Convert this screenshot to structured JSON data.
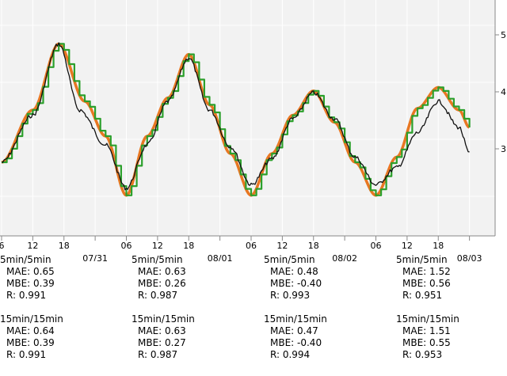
{
  "chart_data": {
    "type": "line",
    "grid": true,
    "x_range_hours": [
      6,
      102
    ],
    "x_ticks": [
      {
        "h": 6,
        "label": "6"
      },
      {
        "h": 12,
        "label": "12"
      },
      {
        "h": 18,
        "label": "18"
      },
      {
        "h": 24,
        "label": "07/31"
      },
      {
        "h": 30,
        "label": "06"
      },
      {
        "h": 36,
        "label": "12"
      },
      {
        "h": 42,
        "label": "18"
      },
      {
        "h": 48,
        "label": "08/01"
      },
      {
        "h": 54,
        "label": "06"
      },
      {
        "h": 60,
        "label": "12"
      },
      {
        "h": 66,
        "label": "18"
      },
      {
        "h": 72,
        "label": "08/02"
      },
      {
        "h": 78,
        "label": "06"
      },
      {
        "h": 84,
        "label": "12"
      },
      {
        "h": 90,
        "label": "18"
      },
      {
        "h": 96,
        "label": "08/03"
      }
    ],
    "right_tick_labels": [
      "5",
      "4",
      "3"
    ],
    "series": [
      {
        "color": "#e87722",
        "points": [
          [
            6,
            0.25
          ],
          [
            12,
            0.55
          ],
          [
            17,
            0.93
          ],
          [
            22,
            0.6
          ],
          [
            26,
            0.4
          ],
          [
            30,
            0.06
          ],
          [
            34,
            0.4
          ],
          [
            38,
            0.62
          ],
          [
            42,
            0.87
          ],
          [
            46,
            0.58
          ],
          [
            50,
            0.3
          ],
          [
            54,
            0.06
          ],
          [
            58,
            0.3
          ],
          [
            62,
            0.52
          ],
          [
            66,
            0.66
          ],
          [
            70,
            0.48
          ],
          [
            74,
            0.25
          ],
          [
            78,
            0.06
          ],
          [
            82,
            0.28
          ],
          [
            86,
            0.56
          ],
          [
            90,
            0.68
          ],
          [
            94,
            0.55
          ],
          [
            96,
            0.45
          ]
        ]
      },
      {
        "color": "#2ca02c",
        "points": [
          [
            6,
            0.25
          ],
          [
            12,
            0.55
          ],
          [
            17,
            0.93
          ],
          [
            22,
            0.6
          ],
          [
            26,
            0.4
          ],
          [
            30,
            0.06
          ],
          [
            34,
            0.4
          ],
          [
            38,
            0.62
          ],
          [
            42,
            0.87
          ],
          [
            46,
            0.58
          ],
          [
            50,
            0.3
          ],
          [
            54,
            0.06
          ],
          [
            58,
            0.3
          ],
          [
            62,
            0.52
          ],
          [
            66,
            0.66
          ],
          [
            70,
            0.48
          ],
          [
            74,
            0.25
          ],
          [
            78,
            0.06
          ],
          [
            82,
            0.28
          ],
          [
            86,
            0.56
          ],
          [
            90,
            0.68
          ],
          [
            94,
            0.55
          ],
          [
            96,
            0.45
          ]
        ]
      },
      {
        "color": "#111111",
        "points": [
          [
            6,
            0.25
          ],
          [
            12,
            0.52
          ],
          [
            17,
            0.93
          ],
          [
            21,
            0.55
          ],
          [
            26,
            0.35
          ],
          [
            30,
            0.1
          ],
          [
            34,
            0.35
          ],
          [
            38,
            0.6
          ],
          [
            42,
            0.85
          ],
          [
            46,
            0.55
          ],
          [
            50,
            0.34
          ],
          [
            54,
            0.12
          ],
          [
            58,
            0.27
          ],
          [
            62,
            0.5
          ],
          [
            66,
            0.65
          ],
          [
            70,
            0.5
          ],
          [
            74,
            0.28
          ],
          [
            78,
            0.12
          ],
          [
            82,
            0.22
          ],
          [
            86,
            0.42
          ],
          [
            90,
            0.6
          ],
          [
            94,
            0.45
          ],
          [
            96,
            0.3
          ]
        ]
      }
    ]
  },
  "stats": [
    {
      "blocks": [
        {
          "head": "5min/5min",
          "mae": "MAE: 0.65",
          "mbe": "MBE: 0.39",
          "r": "R: 0.991"
        },
        {
          "head": "15min/15min",
          "mae": "MAE: 0.64",
          "mbe": "MBE: 0.39",
          "r": "R: 0.991"
        }
      ]
    },
    {
      "blocks": [
        {
          "head": "5min/5min",
          "mae": "MAE: 0.63",
          "mbe": "MBE: 0.26",
          "r": "R: 0.987"
        },
        {
          "head": "15min/15min",
          "mae": "MAE: 0.63",
          "mbe": "MBE: 0.27",
          "r": "R: 0.987"
        }
      ]
    },
    {
      "blocks": [
        {
          "head": "5min/5min",
          "mae": "MAE: 0.48",
          "mbe": "MBE: -0.40",
          "r": "R: 0.993"
        },
        {
          "head": "15min/15min",
          "mae": "MAE: 0.47",
          "mbe": "MBE: -0.40",
          "r": "R: 0.994"
        }
      ]
    },
    {
      "blocks": [
        {
          "head": "5min/5min",
          "mae": "MAE: 1.52",
          "mbe": "MBE: 0.56",
          "r": "R: 0.951"
        },
        {
          "head": "15min/15min",
          "mae": "MAE: 1.51",
          "mbe": "MBE: 0.55",
          "r": "R: 0.953"
        }
      ]
    }
  ]
}
